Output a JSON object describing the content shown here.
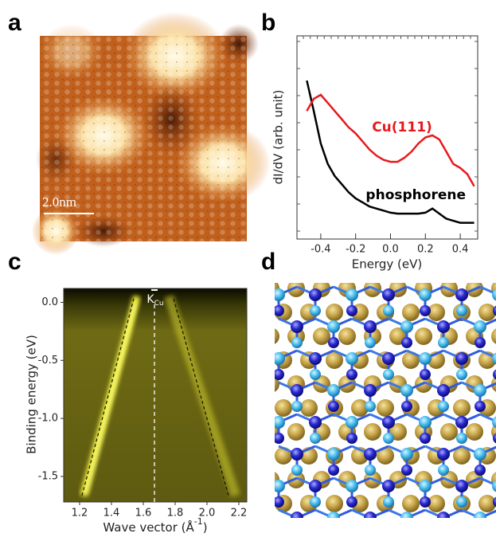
{
  "panel_labels": [
    "a",
    "b",
    "c",
    "d"
  ],
  "scale_bar": "2.0nm",
  "chart_data": [
    {
      "type": "line",
      "xlabel": "Energy (eV)",
      "ylabel": "dI/dV (arb. unit)",
      "xlim": [
        -0.5,
        0.5
      ],
      "ylim": [
        0,
        10
      ],
      "xticks": [
        -0.4,
        -0.2,
        {
          "value": 0,
          "label": "0.0"
        },
        0.2,
        0.4
      ],
      "x": [
        -0.48,
        -0.44,
        -0.4,
        -0.36,
        -0.32,
        -0.28,
        -0.24,
        -0.2,
        -0.16,
        -0.12,
        -0.08,
        -0.04,
        0,
        0.04,
        0.08,
        0.12,
        0.16,
        0.2,
        0.24,
        0.28,
        0.32,
        0.36,
        0.4,
        0.44,
        0.48
      ],
      "series": [
        {
          "name": "phosphorene",
          "color": "#000000",
          "values": [
            7.8,
            6.3,
            4.7,
            3.7,
            3.1,
            2.7,
            2.3,
            2.0,
            1.8,
            1.6,
            1.5,
            1.4,
            1.3,
            1.25,
            1.25,
            1.25,
            1.25,
            1.3,
            1.5,
            1.25,
            1.0,
            0.9,
            0.8,
            0.8,
            0.8
          ]
        },
        {
          "name": "Cu(111)",
          "color": "#e8191c",
          "values": [
            6.3,
            6.9,
            7.1,
            6.7,
            6.3,
            5.9,
            5.5,
            5.2,
            4.8,
            4.4,
            4.1,
            3.9,
            3.8,
            3.8,
            4.0,
            4.3,
            4.7,
            5.0,
            5.1,
            4.9,
            4.3,
            3.7,
            3.5,
            3.2,
            2.6
          ]
        }
      ]
    },
    {
      "type": "image",
      "xlabel": "Wave vector (Å",
      "xlabel_superscript": "-1",
      "xlabel_end": ")",
      "ylabel": "Binding energy (eV)",
      "xlim": [
        1.1,
        2.25
      ],
      "ylim": [
        -1.72,
        0.12
      ],
      "xticks": [
        1.2,
        1.4,
        1.6,
        1.8,
        {
          "value": 2,
          "label": "2.0"
        },
        2.2
      ],
      "yticks": [
        {
          "value": 0,
          "label": "0.0"
        },
        -0.5,
        {
          "value": -1,
          "label": "-1.0"
        },
        -1.5
      ],
      "marker_line": {
        "x": 1.67,
        "label": "K",
        "label_sub": "Cu"
      }
    }
  ]
}
